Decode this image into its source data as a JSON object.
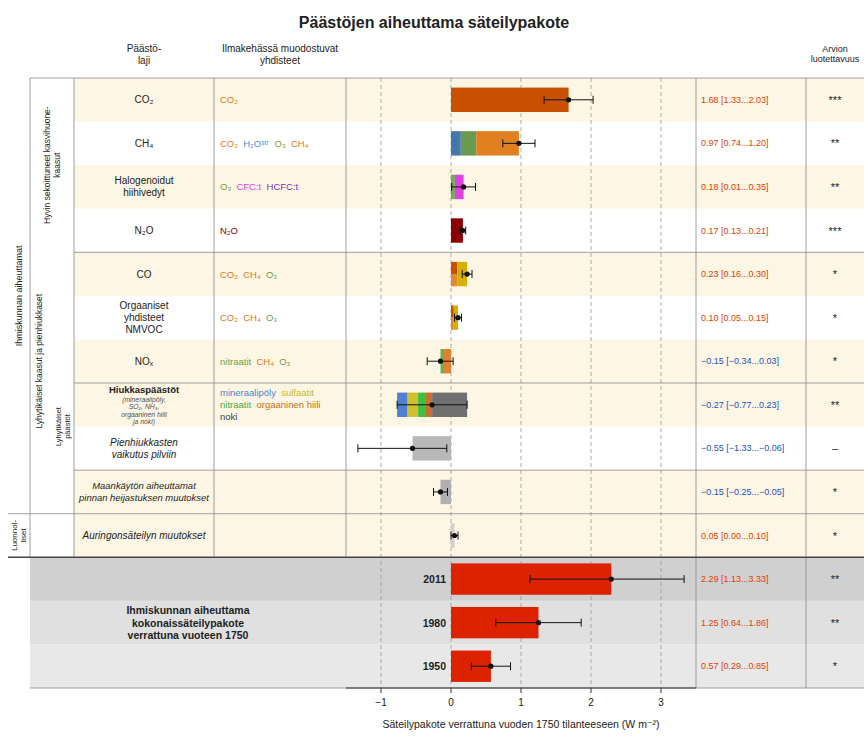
{
  "chart_data": {
    "type": "bar",
    "orientation": "horizontal",
    "title": "Päästöjen aiheuttama säteilypakote",
    "xlabel": "Säteilypakote verrattuna vuoden 1750 tilanteeseen (W m⁻²)",
    "xlim": [
      -1.5,
      3.5
    ],
    "xticks": [
      {
        "value": -1,
        "label": "−1"
      },
      0,
      1,
      2,
      3
    ],
    "grid": true,
    "column_headers": [
      "Päästö-\nlaji",
      "Ilmakehässä muodostuvat\nyhdisteet",
      "Arvion\nluotettavuus"
    ],
    "group_labels": [
      "Ihmiskunnan aiheuttamat",
      "Hyvin sekoittuneet kasvihuone-\nkaasut",
      "Lyhytikäiset kaasut ja pienhiukkaset",
      "Lyhytikäiset\npäästöt",
      "Luonnol-\nliset"
    ],
    "total_label": "Ihmiskunnan aiheuttama\nkokonaissäteilypakote\nverrattuna vuoteen 1750",
    "total_color": "#dd2200",
    "rows": [
      {
        "label": "CO₂",
        "italic": false,
        "bold": false,
        "segments": [
          {
            "start": 0,
            "value": 1.68,
            "color": "#c85000"
          }
        ],
        "value": 1.68,
        "low": 1.33,
        "high": 2.03,
        "value_label": "1.68 [1.33...2.03]",
        "label_color": "#e04000",
        "confidence": "***",
        "background": "#fef6e4",
        "compounds": [
          {
            "text": "CO₂",
            "color": "#e07820"
          }
        ]
      },
      {
        "label": "CH₄",
        "italic": false,
        "bold": false,
        "segments": [
          {
            "start": 0,
            "value": 0.14,
            "color": "#4477aa"
          },
          {
            "start": 0.14,
            "value": 0.22,
            "color": "#6a9a50"
          },
          {
            "start": 0.36,
            "value": 0.61,
            "color": "#e08020"
          }
        ],
        "value": 0.97,
        "low": 0.74,
        "high": 1.2,
        "value_label": "0.97 [0.74...1.20]",
        "label_color": "#e04000",
        "confidence": "**",
        "background": "#ffffff",
        "compounds": [
          {
            "text": "CO₂",
            "color": "#e07820"
          },
          {
            "text": "H₂Oˢᵗʳ",
            "color": "#4090e0"
          },
          {
            "text": "O₃",
            "color": "#70a040"
          },
          {
            "text": "CH₄",
            "color": "#e07820"
          }
        ]
      },
      {
        "label": "Halogenoidut\nhiihivedyt",
        "italic": false,
        "bold": false,
        "segments": [
          {
            "start": 0,
            "value": 0.055,
            "color": "#6ab050"
          },
          {
            "start": 0.055,
            "value": 0.125,
            "color": "#e040e0"
          }
        ],
        "value": 0.18,
        "low": 0.01,
        "high": 0.35,
        "value_label": "0.18 [0.01...0.35]",
        "label_color": "#e04000",
        "confidence": "**",
        "background": "#fef6e4",
        "compounds": [
          {
            "text": "O₃",
            "color": "#70a040"
          },
          {
            "text": "CFC:t",
            "color": "#e040e0"
          },
          {
            "text": "HCFC:t",
            "color": "#8030c0"
          }
        ]
      },
      {
        "label": "N₂O",
        "italic": false,
        "bold": false,
        "segments": [
          {
            "start": 0,
            "value": 0.17,
            "color": "#8b0000"
          }
        ],
        "value": 0.17,
        "low": 0.13,
        "high": 0.21,
        "value_label": "0.17 [0.13...0.21]",
        "label_color": "#e04000",
        "confidence": "***",
        "background": "#ffffff",
        "compounds": [
          {
            "text": "N₂O",
            "color": "#8b0000"
          }
        ]
      },
      {
        "label": "CO",
        "italic": false,
        "bold": false,
        "segments": [
          {
            "start": 0,
            "value": 0.09,
            "colors": [
              "#c85000",
              "#e08830"
            ]
          },
          {
            "start": 0.09,
            "value": 0.14,
            "color": "#d4b000"
          }
        ],
        "value": 0.23,
        "low": 0.16,
        "high": 0.3,
        "value_label": "0.23 [0.16...0.30]",
        "label_color": "#e04000",
        "confidence": "*",
        "background": "#fef6e4",
        "compounds": [
          {
            "text": "CO₂",
            "color": "#e07820"
          },
          {
            "text": "CH₄",
            "color": "#e07820"
          },
          {
            "text": "O₃",
            "color": "#70a040"
          }
        ]
      },
      {
        "label": "Orgaaniset\nyhdisteet\nNMVOC",
        "italic": false,
        "bold": false,
        "segments": [
          {
            "start": 0,
            "value": 0.04,
            "colors": [
              "#c85000",
              "#e08830"
            ]
          },
          {
            "start": 0.04,
            "value": 0.06,
            "color": "#d4b000"
          }
        ],
        "value": 0.1,
        "low": 0.05,
        "high": 0.15,
        "value_label": "0.10 [0.05...0.15]",
        "label_color": "#e04000",
        "confidence": "*",
        "background": "#ffffff",
        "compounds": [
          {
            "text": "CO₂",
            "color": "#e07820"
          },
          {
            "text": "CH₄",
            "color": "#e07820"
          },
          {
            "text": "O₃",
            "color": "#70a040"
          }
        ]
      },
      {
        "label": "NOₓ",
        "italic": false,
        "bold": false,
        "segments": [
          {
            "start": -0.15,
            "value": 0.05,
            "color": "#6ab050"
          },
          {
            "start": -0.1,
            "value": 0.1,
            "color": "#e08030"
          }
        ],
        "value": -0.15,
        "low": -0.34,
        "high": 0.03,
        "value_label": "−0.15 [−0.34...0.03]",
        "label_color": "#2050c0",
        "confidence": "*",
        "background": "#fef6e4",
        "compounds": [
          {
            "text": "nitraatit",
            "color": "#70a040"
          },
          {
            "text": "CH₄",
            "color": "#e07820"
          },
          {
            "text": "O₃",
            "color": "#70a040"
          }
        ]
      },
      {
        "label": "Hiukkaspäästöt",
        "italic": false,
        "bold": true,
        "sublabel": "(mineraalipöly,\nSO₂, NH₃,\norgaaninen hiili\nja noki)",
        "segments": [
          {
            "start": -0.77,
            "value": 0.15,
            "color": "#5080d0"
          },
          {
            "start": -0.62,
            "value": 0.15,
            "color": "#d0c030"
          },
          {
            "start": -0.47,
            "value": 0.1,
            "color": "#40c040"
          },
          {
            "start": -0.37,
            "value": 0.1,
            "color": "#c87030"
          },
          {
            "start": -0.27,
            "value": 0.5,
            "color": "#707070"
          }
        ],
        "value": -0.27,
        "low": -0.77,
        "high": 0.23,
        "value_label": "−0.27 [−0.77...0.23]",
        "label_color": "#2050c0",
        "confidence": "**",
        "background": "#fef6e4",
        "compounds": [
          {
            "text": "mineraalipöly",
            "color": "#5080d0"
          },
          {
            "text": "sulfaatit",
            "color": "#c8b820"
          },
          {
            "text": "nitraatit",
            "color": "#40b040"
          },
          {
            "text": "orgaaninen hiili",
            "color": "#c07020"
          },
          {
            "text": "noki",
            "color": "#404040"
          }
        ]
      },
      {
        "label": "Pienhiukkasten\nvaikutus pilviin",
        "italic": true,
        "bold": false,
        "segments": [
          {
            "start": -0.55,
            "value": 0.55,
            "color": "#b8b8b8"
          }
        ],
        "value": -0.55,
        "low": -1.33,
        "high": -0.06,
        "value_label": "−0.55 [−1.33...−0.06]",
        "label_color": "#2050c0",
        "confidence": "–",
        "background": "#ffffff"
      },
      {
        "label": "Maankäytön aiheuttamat\npinnan heijastuksen muutokset",
        "italic": true,
        "bold": false,
        "segments": [
          {
            "start": -0.15,
            "value": 0.15,
            "color": "#b0b0b0"
          }
        ],
        "value": -0.15,
        "low": -0.25,
        "high": -0.05,
        "value_label": "−0.15 [−0.25...−0.05]",
        "label_color": "#2050c0",
        "confidence": "*",
        "background": "#fef6e4"
      },
      {
        "label": "Auringonsäteilyn muutokset",
        "italic": true,
        "bold": false,
        "segments": [
          {
            "start": 0,
            "value": 0.05,
            "color": "#d0d0d0"
          }
        ],
        "value": 0.05,
        "low": 0.0,
        "high": 0.1,
        "value_label": "0.05 [0.00...0.10]",
        "label_color": "#e04000",
        "confidence": "*",
        "background": "#fef6e4"
      }
    ],
    "totals": [
      {
        "label": "2011",
        "value": 2.29,
        "low": 1.13,
        "high": 3.33,
        "value_label": "2.29 [1.13...3.33]",
        "label_color": "#e04000",
        "confidence": "**",
        "background": "#d0d0d0"
      },
      {
        "label": "1980",
        "value": 1.25,
        "low": 0.64,
        "high": 1.86,
        "value_label": "1.25 [0.64...1.86]",
        "label_color": "#e04000",
        "confidence": "**",
        "background": "#e0e0e0"
      },
      {
        "label": "1950",
        "value": 0.57,
        "lo": null,
        "low": 0.29,
        "high": 0.85,
        "value_label": "0.57 [0.29...0.85]",
        "label_color": "#e04000",
        "confidence": "*",
        "background": "#e8e8e8"
      }
    ]
  }
}
